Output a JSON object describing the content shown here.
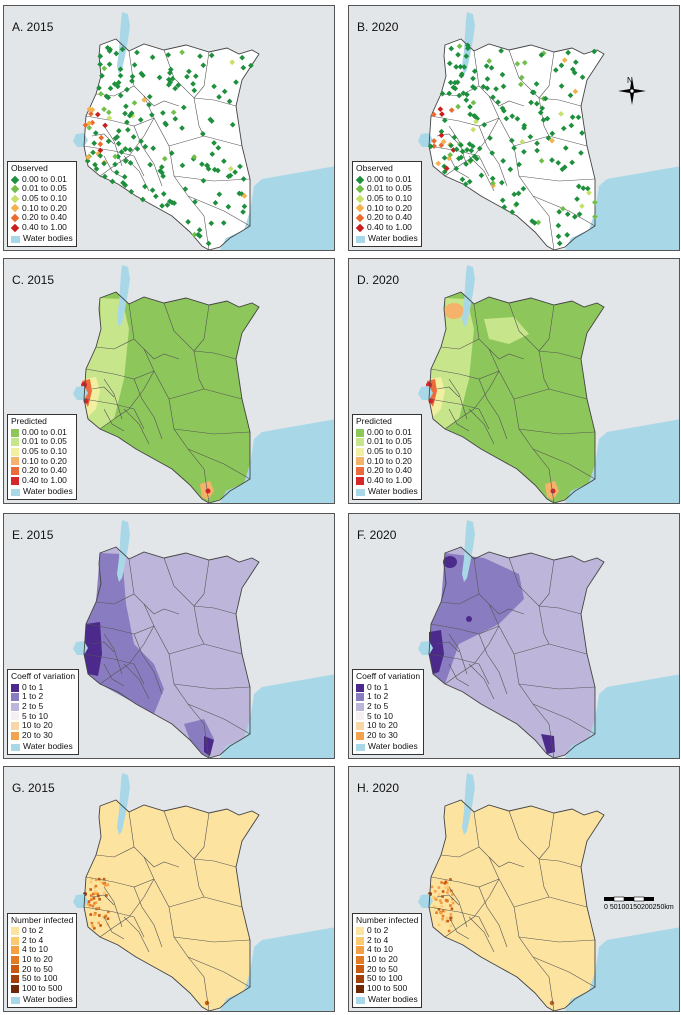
{
  "panels": [
    {
      "title": "A. 2015",
      "type": "observed"
    },
    {
      "title": "B. 2020",
      "type": "observed"
    },
    {
      "title": "C. 2015",
      "type": "predicted"
    },
    {
      "title": "D. 2020",
      "type": "predicted"
    },
    {
      "title": "E. 2015",
      "type": "cv"
    },
    {
      "title": "F. 2020",
      "type": "cv"
    },
    {
      "title": "G. 2015",
      "type": "infected"
    },
    {
      "title": "H. 2020",
      "type": "infected"
    }
  ],
  "legends": {
    "observed": {
      "title": "Observed",
      "items": [
        {
          "label": "0.00 to 0.01",
          "color": "#1e8f3c"
        },
        {
          "label": "0.01 to 0.05",
          "color": "#6fbf4a"
        },
        {
          "label": "0.05 to 0.10",
          "color": "#c6e06a"
        },
        {
          "label": "0.10 to 0.20",
          "color": "#f4b04a"
        },
        {
          "label": "0.20 to 0.40",
          "color": "#ea6a2c"
        },
        {
          "label": "0.40 to 1.00",
          "color": "#c81e1e"
        }
      ]
    },
    "predicted": {
      "title": "Predicted",
      "items": [
        {
          "label": "0.00 to 0.01",
          "color": "#8dc65a"
        },
        {
          "label": "0.01 to 0.05",
          "color": "#c7e58a"
        },
        {
          "label": "0.05 to 0.10",
          "color": "#f1efa0"
        },
        {
          "label": "0.10 to 0.20",
          "color": "#f5b26a"
        },
        {
          "label": "0.20 to 0.40",
          "color": "#ea6c3c"
        },
        {
          "label": "0.40 to 1.00",
          "color": "#d7262a"
        }
      ]
    },
    "cv": {
      "title": "Coeff of variation",
      "items": [
        {
          "label": "0 to 1",
          "color": "#4b2a8c"
        },
        {
          "label": "1 to 2",
          "color": "#8a7cc0"
        },
        {
          "label": "2 to 5",
          "color": "#bdb6da"
        },
        {
          "label": "5 to 10",
          "color": "#f4eff0"
        },
        {
          "label": "10 to 20",
          "color": "#f8d7a6"
        },
        {
          "label": "20 to 30",
          "color": "#f3a24e"
        }
      ]
    },
    "infected": {
      "title": "Number infected",
      "items": [
        {
          "label": "0 to 2",
          "color": "#fde3a0"
        },
        {
          "label": "2 to 4",
          "color": "#fbc970"
        },
        {
          "label": "4 to 10",
          "color": "#f5a044"
        },
        {
          "label": "10 to 20",
          "color": "#e37a24"
        },
        {
          "label": "20 to 50",
          "color": "#c85a12"
        },
        {
          "label": "50 to 100",
          "color": "#a0400a"
        },
        {
          "label": "100 to 500",
          "color": "#6e2805"
        }
      ]
    }
  },
  "water_label": "Water bodies",
  "colors": {
    "water": "#a8d8e8",
    "background": "#e3e6e8",
    "border": "#444444"
  },
  "north_label": "N",
  "scale_label": "0 50100150200250km",
  "scale_ticks": [
    0,
    50,
    100,
    150,
    200,
    250
  ]
}
